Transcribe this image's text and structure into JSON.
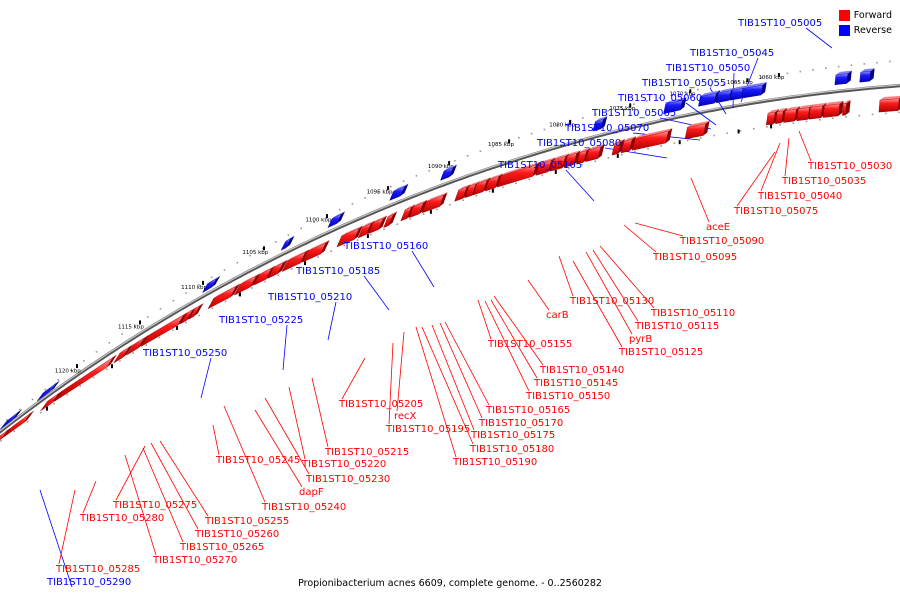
{
  "legend": {
    "forward": "Forward",
    "reverse": "Reverse"
  },
  "colors": {
    "forward": "#ff0000",
    "reverse": "#0000ff",
    "backbone": "#808080"
  },
  "caption": "Propionibacterium acnes 6609, complete genome. - 0..2560282",
  "kbp_ticks": [
    "1060 kbp",
    "1065 kbp",
    "1070 kbp",
    "1075 kbp",
    "1080 kbp",
    "1085 kbp",
    "1090 kbp",
    "1095 kbp",
    "1100 kbp",
    "1105 kbp",
    "1110 kbp",
    "1115 kbp",
    "1120 kbp"
  ],
  "reverse_labels": [
    "TIB1ST10_05005",
    "TIB1ST10_05045",
    "TIB1ST10_05050",
    "TIB1ST10_05055",
    "TIB1ST10_05060",
    "TIB1ST10_05065",
    "TIB1ST10_05070",
    "TIB1ST10_05080",
    "TIB1ST10_05105",
    "TIB1ST10_05160",
    "TIB1ST10_05185",
    "TIB1ST10_05210",
    "TIB1ST10_05225",
    "TIB1ST10_05250",
    "TIB1ST10_05290"
  ],
  "forward_labels": [
    "TIB1ST10_05030",
    "TIB1ST10_05035",
    "TIB1ST10_05040",
    "TIB1ST10_05075",
    "aceE",
    "TIB1ST10_05090",
    "TIB1ST10_05095",
    "TIB1ST10_05130",
    "TIB1ST10_05110",
    "carB",
    "TIB1ST10_05115",
    "pyrB",
    "TIB1ST10_05125",
    "TIB1ST10_05155",
    "TIB1ST10_05140",
    "TIB1ST10_05145",
    "TIB1ST10_05150",
    "TIB1ST10_05205",
    "TIB1ST10_05165",
    "recX",
    "TIB1ST10_05170",
    "TIB1ST10_05195",
    "TIB1ST10_05175",
    "TIB1ST10_05180",
    "TIB1ST10_05215",
    "TIB1ST10_05190",
    "TIB1ST10_05245",
    "TIB1ST10_05220",
    "TIB1ST10_05230",
    "dapF",
    "TIB1ST10_05275",
    "TIB1ST10_05240",
    "TIB1ST10_05280",
    "TIB1ST10_05255",
    "TIB1ST10_05260",
    "TIB1ST10_05265",
    "TIB1ST10_05270",
    "TIB1ST10_05285"
  ]
}
